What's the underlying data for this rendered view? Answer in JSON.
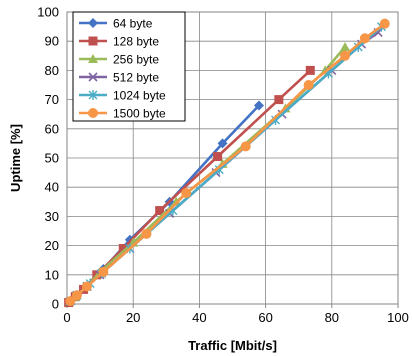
{
  "chart_data": {
    "type": "line",
    "title": "",
    "xlabel": "Traffic [Mbit/s]",
    "ylabel": "Uptime [%]",
    "xlim": [
      0,
      100
    ],
    "ylim": [
      0,
      100
    ],
    "xticks": [
      0,
      20,
      40,
      60,
      80,
      100
    ],
    "yticks": [
      0,
      10,
      20,
      30,
      40,
      50,
      60,
      70,
      80,
      90,
      100
    ],
    "grid": true,
    "legend_position": "top-left",
    "series": [
      {
        "name": "64 byte",
        "color": "#4472C4",
        "marker": "diamond",
        "x": [
          1,
          3,
          6,
          11,
          19,
          31,
          47,
          58
        ],
        "y": [
          1,
          3,
          6,
          12,
          22,
          35,
          55,
          68
        ]
      },
      {
        "name": "128 byte",
        "color": "#C0504D",
        "marker": "square",
        "x": [
          0.5,
          2.5,
          5,
          9,
          17,
          28,
          45.5,
          64,
          73.5
        ],
        "y": [
          0.5,
          2.5,
          5,
          10,
          19,
          32,
          50.5,
          70,
          80
        ]
      },
      {
        "name": "256 byte",
        "color": "#9BBB59",
        "marker": "triangle",
        "x": [
          1,
          2.5,
          6,
          10,
          20,
          33,
          47,
          66,
          78,
          84
        ],
        "y": [
          1,
          2.5,
          6,
          11,
          21,
          35,
          48,
          67,
          80,
          88
        ]
      },
      {
        "name": "512 byte",
        "color": "#8064A2",
        "marker": "x",
        "x": [
          1,
          3,
          6,
          10,
          19,
          31,
          45,
          65,
          80,
          89,
          94
        ],
        "y": [
          1,
          3,
          6,
          10,
          19,
          31,
          45,
          65,
          80,
          89,
          93
        ]
      },
      {
        "name": "1024 byte",
        "color": "#4BACC6",
        "marker": "star",
        "x": [
          1,
          3,
          7,
          10.5,
          19,
          32,
          46,
          63,
          79,
          88,
          95
        ],
        "y": [
          1,
          3,
          7,
          10.5,
          19,
          32,
          46,
          63,
          79,
          88,
          95
        ]
      },
      {
        "name": "1500 byte",
        "color": "#F79646",
        "marker": "circle",
        "x": [
          1,
          3,
          6,
          11,
          24,
          36,
          54,
          73,
          84,
          90,
          96
        ],
        "y": [
          1,
          3,
          6,
          11,
          24,
          38,
          54,
          75,
          85,
          91,
          96
        ]
      }
    ]
  }
}
